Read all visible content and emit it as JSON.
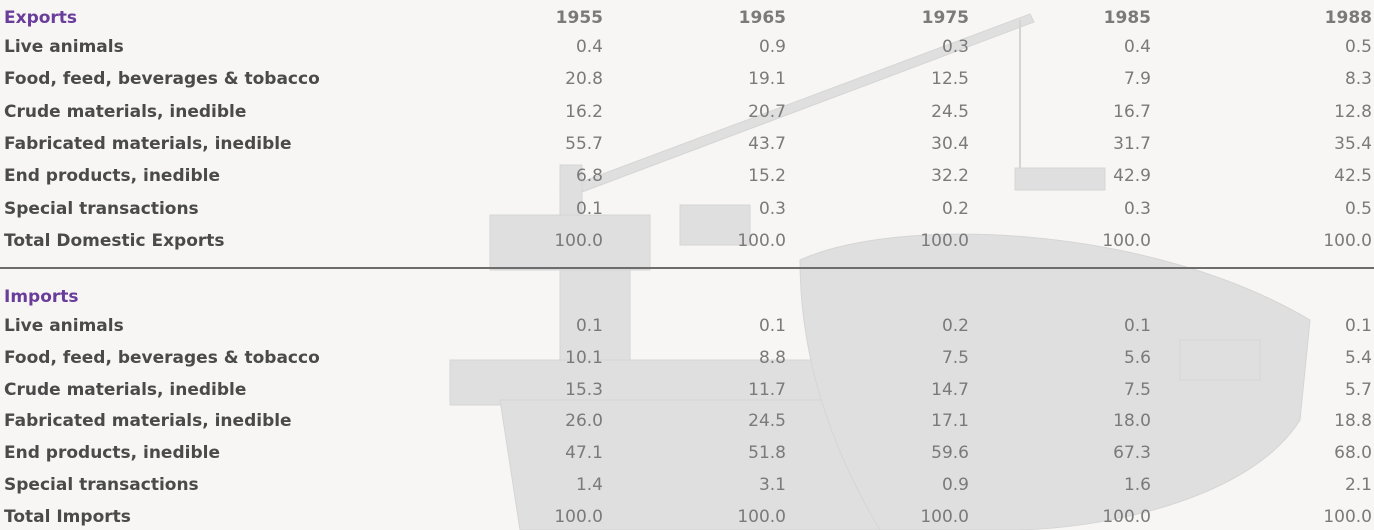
{
  "exports": {
    "title": "Exports",
    "columns": [
      "1955",
      "1965",
      "1975",
      "1985",
      "1988"
    ],
    "rows": [
      {
        "label": "Live animals",
        "values": [
          "0.4",
          "0.9",
          "0.3",
          "0.4",
          "0.5"
        ]
      },
      {
        "label": "Food, feed, beverages & tobacco",
        "values": [
          "20.8",
          "19.1",
          "12.5",
          "7.9",
          "8.3"
        ]
      },
      {
        "label": "Crude materials, inedible",
        "values": [
          "16.2",
          "20.7",
          "24.5",
          "16.7",
          "12.8"
        ]
      },
      {
        "label": "Fabricated materials, inedible",
        "values": [
          "55.7",
          "43.7",
          "30.4",
          "31.7",
          "35.4"
        ]
      },
      {
        "label": "End products, inedible",
        "values": [
          "6.8",
          "15.2",
          "32.2",
          "42.9",
          "42.5"
        ]
      },
      {
        "label": "Special transactions",
        "values": [
          "0.1",
          "0.3",
          "0.2",
          "0.3",
          "0.5"
        ]
      },
      {
        "label": "Total Domestic Exports",
        "values": [
          "100.0",
          "100.0",
          "100.0",
          "100.0",
          "100.0"
        ]
      }
    ]
  },
  "imports": {
    "title": "Imports",
    "rows": [
      {
        "label": "Live animals",
        "values": [
          "0.1",
          "0.1",
          "0.2",
          "0.1",
          "0.1"
        ]
      },
      {
        "label": "Food, feed, beverages & tobacco",
        "values": [
          "10.1",
          "8.8",
          "7.5",
          "5.6",
          "5.4"
        ]
      },
      {
        "label": "Crude materials, inedible",
        "values": [
          "15.3",
          "11.7",
          "14.7",
          "7.5",
          "5.7"
        ]
      },
      {
        "label": "Fabricated materials, inedible",
        "values": [
          "26.0",
          "24.5",
          "17.1",
          "18.0",
          "18.8"
        ]
      },
      {
        "label": "End products, inedible",
        "values": [
          "47.1",
          "51.8",
          "59.6",
          "67.3",
          "68.0"
        ]
      },
      {
        "label": "Special transactions",
        "values": [
          "1.4",
          "3.1",
          "0.9",
          "1.6",
          "2.1"
        ]
      },
      {
        "label": "Total Imports",
        "values": [
          "100.0",
          "100.0",
          "100.0",
          "100.0",
          "100.0"
        ]
      }
    ]
  }
}
